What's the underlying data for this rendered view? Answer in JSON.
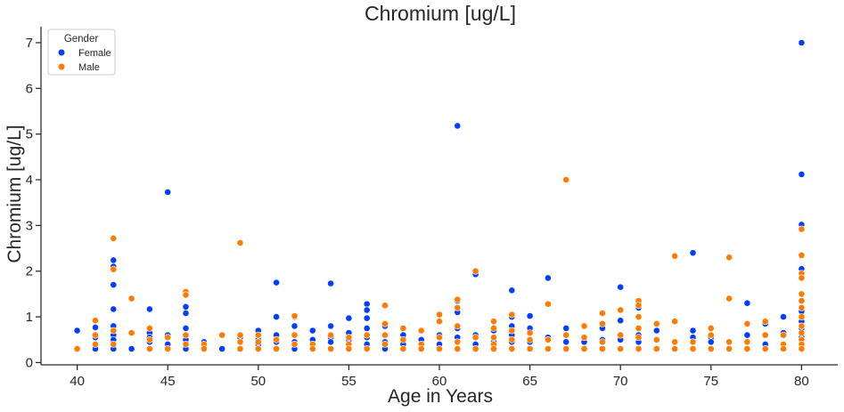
{
  "colors": {
    "female": "#023eff",
    "male": "#ff7c00",
    "axis": "#262626",
    "marker_edge": "#ffffff"
  },
  "chart_data": {
    "type": "scatter",
    "title": "Chromium [ug/L]",
    "xlabel": "Age in Years",
    "ylabel": "Chromium [ug/L]",
    "xlim": [
      38,
      82
    ],
    "ylim": [
      -0.05,
      7.35
    ],
    "x_ticks": [
      40,
      45,
      50,
      55,
      60,
      65,
      70,
      75,
      80
    ],
    "x_tick_labels": [
      "40",
      "45",
      "50",
      "55",
      "60",
      "65",
      "70",
      "75",
      "80"
    ],
    "y_ticks": [
      0,
      1,
      2,
      3,
      4,
      5,
      6,
      7
    ],
    "y_tick_labels": [
      "0",
      "1",
      "2",
      "3",
      "4",
      "5",
      "6",
      "7"
    ],
    "grid": false,
    "legend": {
      "title": "Gender",
      "position": "top-left",
      "entries": [
        "Female",
        "Male"
      ]
    },
    "series": [
      {
        "name": "Female",
        "color": "#023eff",
        "points": [
          [
            40,
            0.7
          ],
          [
            40,
            0.3
          ],
          [
            41,
            0.3
          ],
          [
            41,
            0.55
          ],
          [
            41,
            0.77
          ],
          [
            42,
            2.24
          ],
          [
            42,
            2.1
          ],
          [
            42,
            1.7
          ],
          [
            42,
            1.17
          ],
          [
            42,
            0.8
          ],
          [
            42,
            0.6
          ],
          [
            42,
            0.5
          ],
          [
            42,
            0.3
          ],
          [
            43,
            0.3
          ],
          [
            44,
            1.17
          ],
          [
            44,
            0.65
          ],
          [
            44,
            0.55
          ],
          [
            44,
            0.45
          ],
          [
            44,
            0.3
          ],
          [
            45,
            3.73
          ],
          [
            45,
            0.6
          ],
          [
            45,
            0.4
          ],
          [
            45,
            0.3
          ],
          [
            46,
            1.22
          ],
          [
            46,
            1.08
          ],
          [
            46,
            0.75
          ],
          [
            46,
            0.5
          ],
          [
            46,
            0.3
          ],
          [
            47,
            0.45
          ],
          [
            47,
            0.3
          ],
          [
            48,
            0.3
          ],
          [
            49,
            0.55
          ],
          [
            49,
            0.3
          ],
          [
            50,
            0.7
          ],
          [
            50,
            0.5
          ],
          [
            50,
            0.4
          ],
          [
            50,
            0.3
          ],
          [
            51,
            1.75
          ],
          [
            51,
            1.0
          ],
          [
            51,
            0.6
          ],
          [
            51,
            0.45
          ],
          [
            51,
            0.3
          ],
          [
            52,
            1.0
          ],
          [
            52,
            0.8
          ],
          [
            52,
            0.45
          ],
          [
            52,
            0.3
          ],
          [
            53,
            0.7
          ],
          [
            53,
            0.5
          ],
          [
            53,
            0.3
          ],
          [
            54,
            1.73
          ],
          [
            54,
            0.8
          ],
          [
            54,
            0.55
          ],
          [
            54,
            0.45
          ],
          [
            54,
            0.3
          ],
          [
            55,
            0.97
          ],
          [
            55,
            0.65
          ],
          [
            55,
            0.5
          ],
          [
            55,
            0.3
          ],
          [
            56,
            1.28
          ],
          [
            56,
            1.15
          ],
          [
            56,
            0.97
          ],
          [
            56,
            0.75
          ],
          [
            56,
            0.55
          ],
          [
            56,
            0.4
          ],
          [
            56,
            0.3
          ],
          [
            57,
            0.8
          ],
          [
            57,
            0.45
          ],
          [
            57,
            0.3
          ],
          [
            58,
            0.6
          ],
          [
            58,
            0.4
          ],
          [
            58,
            0.3
          ],
          [
            59,
            0.5
          ],
          [
            59,
            0.3
          ],
          [
            60,
            0.6
          ],
          [
            60,
            0.4
          ],
          [
            60,
            0.3
          ],
          [
            61,
            5.18
          ],
          [
            61,
            1.35
          ],
          [
            61,
            1.1
          ],
          [
            61,
            0.75
          ],
          [
            61,
            0.55
          ],
          [
            61,
            0.3
          ],
          [
            62,
            1.93
          ],
          [
            62,
            0.6
          ],
          [
            62,
            0.4
          ],
          [
            62,
            0.3
          ],
          [
            63,
            0.7
          ],
          [
            63,
            0.45
          ],
          [
            63,
            0.3
          ],
          [
            64,
            1.58
          ],
          [
            64,
            1.0
          ],
          [
            64,
            0.8
          ],
          [
            64,
            0.6
          ],
          [
            64,
            0.45
          ],
          [
            64,
            0.3
          ],
          [
            65,
            1.02
          ],
          [
            65,
            0.75
          ],
          [
            65,
            0.45
          ],
          [
            65,
            0.3
          ],
          [
            66,
            1.85
          ],
          [
            66,
            0.55
          ],
          [
            66,
            0.3
          ],
          [
            67,
            0.75
          ],
          [
            67,
            0.45
          ],
          [
            67,
            0.3
          ],
          [
            68,
            0.45
          ],
          [
            68,
            0.3
          ],
          [
            69,
            0.75
          ],
          [
            69,
            0.5
          ],
          [
            69,
            0.3
          ],
          [
            70,
            1.65
          ],
          [
            70,
            0.92
          ],
          [
            70,
            0.5
          ],
          [
            70,
            0.3
          ],
          [
            71,
            1.2
          ],
          [
            71,
            0.6
          ],
          [
            71,
            0.45
          ],
          [
            71,
            0.3
          ],
          [
            72,
            0.7
          ],
          [
            72,
            0.5
          ],
          [
            72,
            0.3
          ],
          [
            73,
            0.3
          ],
          [
            74,
            2.4
          ],
          [
            74,
            0.7
          ],
          [
            74,
            0.55
          ],
          [
            74,
            0.45
          ],
          [
            74,
            0.3
          ],
          [
            75,
            0.55
          ],
          [
            75,
            0.45
          ],
          [
            75,
            0.3
          ],
          [
            76,
            0.45
          ],
          [
            76,
            0.3
          ],
          [
            77,
            1.3
          ],
          [
            77,
            0.6
          ],
          [
            77,
            0.3
          ],
          [
            78,
            0.85
          ],
          [
            78,
            0.4
          ],
          [
            78,
            0.3
          ],
          [
            79,
            1.0
          ],
          [
            79,
            0.65
          ],
          [
            79,
            0.3
          ],
          [
            80,
            7.0
          ],
          [
            80,
            4.12
          ],
          [
            80,
            3.02
          ],
          [
            80,
            2.05
          ],
          [
            80,
            1.12
          ],
          [
            80,
            0.9
          ],
          [
            80,
            0.75
          ],
          [
            80,
            0.55
          ],
          [
            80,
            0.4
          ],
          [
            80,
            0.3
          ]
        ]
      },
      {
        "name": "Male",
        "color": "#ff7c00",
        "points": [
          [
            40,
            0.3
          ],
          [
            41,
            0.92
          ],
          [
            41,
            0.6
          ],
          [
            41,
            0.4
          ],
          [
            42,
            2.72
          ],
          [
            42,
            2.04
          ],
          [
            42,
            0.7
          ],
          [
            42,
            0.4
          ],
          [
            43,
            1.4
          ],
          [
            43,
            0.65
          ],
          [
            44,
            0.75
          ],
          [
            44,
            0.5
          ],
          [
            44,
            0.3
          ],
          [
            45,
            0.55
          ],
          [
            45,
            0.3
          ],
          [
            46,
            1.55
          ],
          [
            46,
            1.48
          ],
          [
            46,
            0.6
          ],
          [
            46,
            0.4
          ],
          [
            47,
            0.4
          ],
          [
            47,
            0.3
          ],
          [
            48,
            0.6
          ],
          [
            49,
            2.62
          ],
          [
            49,
            0.6
          ],
          [
            49,
            0.45
          ],
          [
            49,
            0.3
          ],
          [
            50,
            0.6
          ],
          [
            50,
            0.45
          ],
          [
            50,
            0.3
          ],
          [
            51,
            0.5
          ],
          [
            51,
            0.3
          ],
          [
            52,
            1.02
          ],
          [
            52,
            0.6
          ],
          [
            52,
            0.4
          ],
          [
            53,
            0.4
          ],
          [
            53,
            0.3
          ],
          [
            54,
            0.6
          ],
          [
            54,
            0.3
          ],
          [
            55,
            0.55
          ],
          [
            55,
            0.4
          ],
          [
            55,
            0.3
          ],
          [
            56,
            0.6
          ],
          [
            56,
            0.3
          ],
          [
            57,
            1.25
          ],
          [
            57,
            0.85
          ],
          [
            57,
            0.6
          ],
          [
            57,
            0.4
          ],
          [
            58,
            0.75
          ],
          [
            58,
            0.5
          ],
          [
            58,
            0.3
          ],
          [
            59,
            0.7
          ],
          [
            59,
            0.4
          ],
          [
            59,
            0.3
          ],
          [
            60,
            1.05
          ],
          [
            60,
            0.9
          ],
          [
            60,
            0.55
          ],
          [
            60,
            0.3
          ],
          [
            61,
            1.38
          ],
          [
            61,
            1.2
          ],
          [
            61,
            0.8
          ],
          [
            61,
            0.45
          ],
          [
            61,
            0.3
          ],
          [
            62,
            2.0
          ],
          [
            62,
            0.55
          ],
          [
            62,
            0.3
          ],
          [
            63,
            0.9
          ],
          [
            63,
            0.75
          ],
          [
            63,
            0.55
          ],
          [
            63,
            0.4
          ],
          [
            63,
            0.3
          ],
          [
            64,
            1.05
          ],
          [
            64,
            0.7
          ],
          [
            64,
            0.5
          ],
          [
            64,
            0.3
          ],
          [
            65,
            0.65
          ],
          [
            65,
            0.5
          ],
          [
            65,
            0.3
          ],
          [
            66,
            1.28
          ],
          [
            66,
            0.5
          ],
          [
            66,
            0.3
          ],
          [
            67,
            4.0
          ],
          [
            67,
            0.6
          ],
          [
            67,
            0.3
          ],
          [
            68,
            0.8
          ],
          [
            68,
            0.55
          ],
          [
            68,
            0.3
          ],
          [
            69,
            1.08
          ],
          [
            69,
            0.85
          ],
          [
            69,
            0.45
          ],
          [
            69,
            0.3
          ],
          [
            70,
            1.15
          ],
          [
            70,
            0.6
          ],
          [
            70,
            0.3
          ],
          [
            71,
            1.35
          ],
          [
            71,
            1.25
          ],
          [
            71,
            1.0
          ],
          [
            71,
            0.75
          ],
          [
            71,
            0.55
          ],
          [
            71,
            0.3
          ],
          [
            72,
            0.85
          ],
          [
            72,
            0.5
          ],
          [
            72,
            0.3
          ],
          [
            73,
            2.33
          ],
          [
            73,
            0.9
          ],
          [
            73,
            0.45
          ],
          [
            73,
            0.3
          ],
          [
            74,
            0.45
          ],
          [
            74,
            0.3
          ],
          [
            75,
            0.75
          ],
          [
            75,
            0.6
          ],
          [
            75,
            0.3
          ],
          [
            76,
            2.3
          ],
          [
            76,
            1.4
          ],
          [
            76,
            0.45
          ],
          [
            76,
            0.3
          ],
          [
            77,
            0.85
          ],
          [
            77,
            0.45
          ],
          [
            77,
            0.3
          ],
          [
            78,
            0.9
          ],
          [
            78,
            0.6
          ],
          [
            78,
            0.3
          ],
          [
            79,
            0.6
          ],
          [
            79,
            0.4
          ],
          [
            79,
            0.3
          ],
          [
            80,
            2.92
          ],
          [
            80,
            2.35
          ],
          [
            80,
            1.95
          ],
          [
            80,
            1.85
          ],
          [
            80,
            1.5
          ],
          [
            80,
            1.35
          ],
          [
            80,
            1.2
          ],
          [
            80,
            1.0
          ],
          [
            80,
            0.8
          ],
          [
            80,
            0.65
          ],
          [
            80,
            0.5
          ],
          [
            80,
            0.4
          ],
          [
            80,
            0.3
          ]
        ]
      }
    ]
  }
}
